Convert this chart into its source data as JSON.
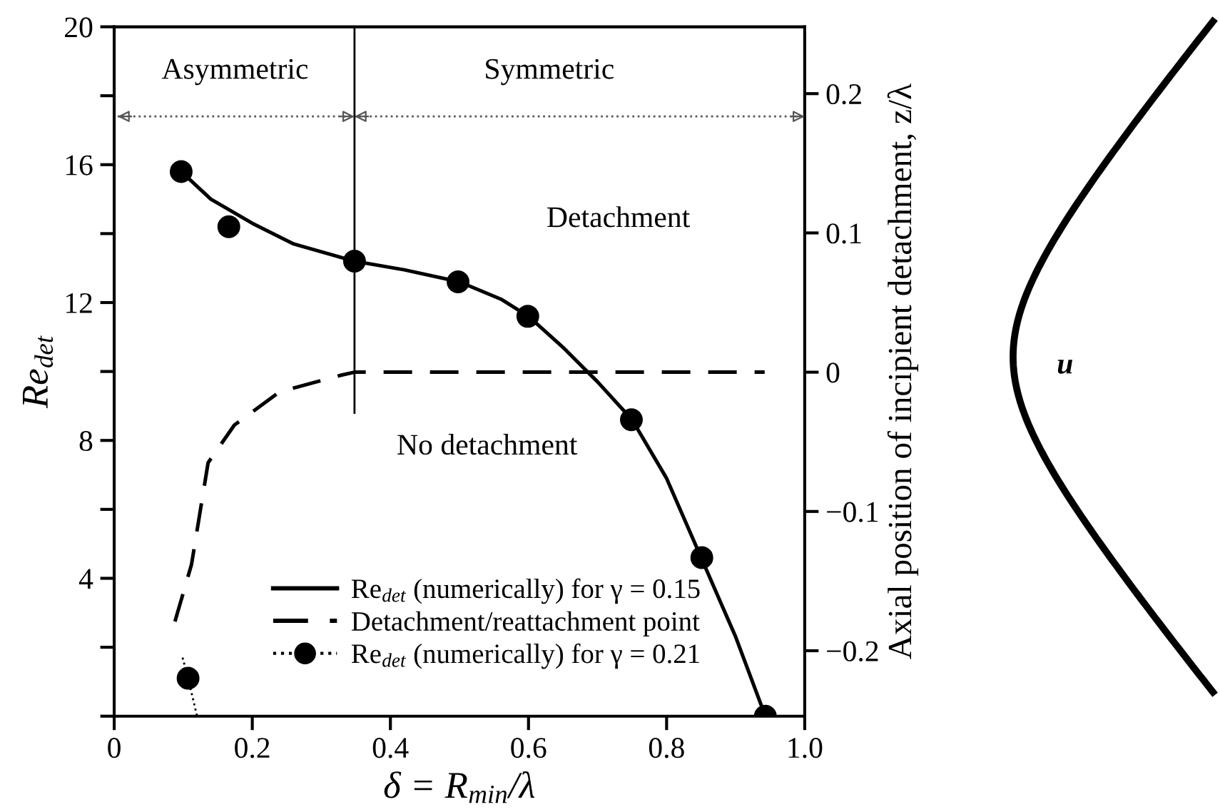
{
  "chart_data": {
    "type": "line",
    "xlabel": "δ = R$_{min}$/λ",
    "ylabel": "Re$_{det}$",
    "y2label": "Axial position of incipient detachment, z/λ",
    "xlim": [
      0,
      1.0
    ],
    "ylim": [
      0,
      20
    ],
    "y2lim": [
      -0.247,
      0.248
    ],
    "xticks": [
      0,
      0.2,
      0.4,
      0.6,
      0.8,
      {
        "value": 1.0,
        "label": "1.0"
      }
    ],
    "yticks": [
      {
        "value": 0,
        "label": null
      },
      {
        "value": 2,
        "label": null
      },
      4,
      {
        "value": 6,
        "label": null
      },
      8,
      {
        "value": 10,
        "label": null
      },
      12,
      {
        "value": 14,
        "label": null
      },
      16,
      {
        "value": 18,
        "label": null
      },
      20
    ],
    "y2ticks": [
      {
        "value": -0.2,
        "label": "−0.2"
      },
      {
        "value": -0.1,
        "label": "−0.1"
      },
      0,
      0.1,
      0.2
    ],
    "grid": false,
    "legend": "bottom",
    "series": [
      {
        "name": "Re$_{det}$ (numerically) for γ = 0.15",
        "color": "#000000",
        "line_style": "solid",
        "x": [
          0.097,
          0.14,
          0.2,
          0.26,
          0.348,
          0.42,
          0.5,
          0.56,
          0.6,
          0.65,
          0.7,
          0.75,
          0.8,
          0.85,
          0.9,
          0.943
        ],
        "values": [
          15.8,
          15.0,
          14.3,
          13.7,
          13.2,
          12.95,
          12.6,
          12.1,
          11.6,
          10.7,
          9.7,
          8.6,
          6.9,
          4.6,
          2.3,
          0
        ]
      },
      {
        "type": "scatter",
        "color": "#000000",
        "marker": "circle",
        "x": [
          0.097,
          0.166,
          0.348,
          0.498,
          0.599,
          0.749,
          0.851,
          0.943
        ],
        "values": [
          15.8,
          14.2,
          13.2,
          12.6,
          11.6,
          8.6,
          4.6,
          0
        ]
      },
      {
        "name": "Detachment/reattachment point",
        "axis": "y2",
        "color": "#000000",
        "line_style": "dashed",
        "x": [
          0.088,
          0.112,
          0.136,
          0.174,
          0.24,
          0.33,
          0.348,
          0.942
        ],
        "values": [
          -0.179,
          -0.138,
          -0.065,
          -0.038,
          -0.014,
          -0.002,
          0,
          0
        ]
      },
      {
        "color": "#000000",
        "line_style": "dotted",
        "x": [
          0.099,
          0.107,
          0.12
        ],
        "values": [
          1.7,
          1.1,
          0
        ]
      },
      {
        "name": "Re$_{det}$ (numerically) for γ = 0.21",
        "type": "scatter",
        "color": "#000000",
        "marker": "circle",
        "line_style": "dotted",
        "x": [
          0.107
        ],
        "values": [
          1.1
        ]
      },
      {
        "color": "#000000",
        "line_style": "solid",
        "x": [
          0.348,
          0.348
        ],
        "values": [
          8.8,
          20
        ]
      }
    ],
    "ref_lines": [
      {
        "axis": "y",
        "value": 17.4,
        "color": "#555555",
        "line_style": "dotted"
      }
    ],
    "annotations": [
      "Asymmetric",
      "Symmetric",
      "Detachment",
      "No detachment",
      "u"
    ]
  }
}
